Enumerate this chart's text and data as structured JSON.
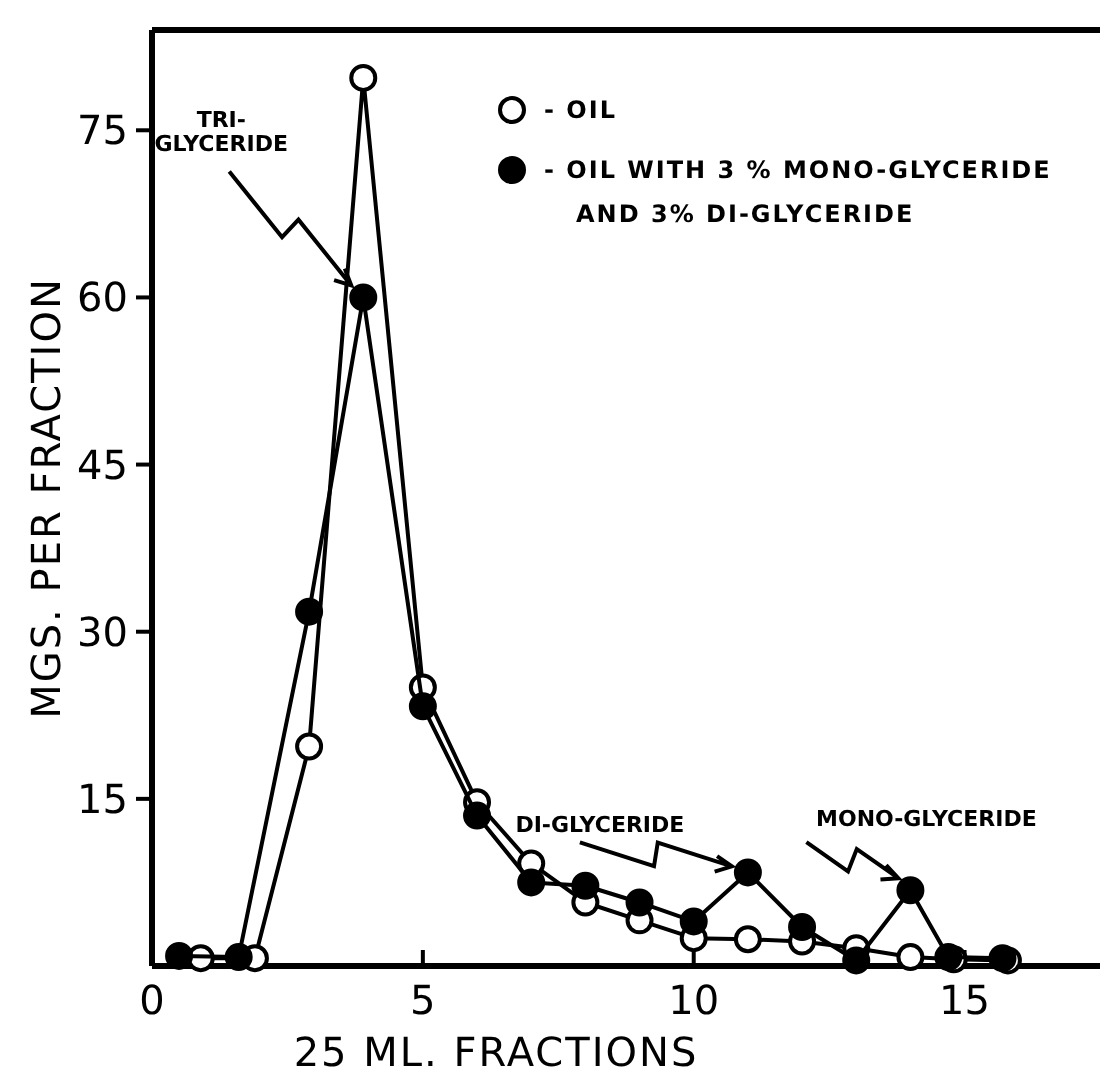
{
  "chart_data": {
    "type": "line",
    "xlabel": "25 ML. FRACTIONS",
    "ylabel": "MGS. PER FRACTION",
    "xlim": [
      0,
      17.5
    ],
    "ylim": [
      0,
      84
    ],
    "xticks": [
      0,
      5,
      10,
      15
    ],
    "yticks": [
      15,
      30,
      45,
      60,
      75
    ],
    "marker": "circle",
    "line_style": "solid",
    "grid": false,
    "legend": "top right",
    "series": [
      {
        "name": "- OIL",
        "color": "#000000",
        "x": [
          0.9,
          1.9,
          2.9,
          3.9,
          5,
          6,
          7,
          8,
          9,
          10,
          11,
          12,
          13,
          14,
          14.8,
          15.8
        ],
        "values": [
          0.7,
          0.7,
          19.7,
          79.7,
          25,
          14.7,
          9.2,
          5.7,
          4.1,
          2.5,
          2.4,
          2.2,
          1.6,
          0.8,
          0.6,
          0.5
        ]
      },
      {
        "name": "- OIL WITH 3 % MONO-GLYCERIDE AND 3% DI-GLYCERIDE",
        "color": "#000000",
        "x": [
          0.5,
          1.6,
          2.9,
          3.9,
          5,
          6,
          7,
          8,
          9,
          10,
          11,
          12,
          13,
          14,
          14.7,
          15.7
        ],
        "values": [
          0.9,
          0.8,
          31.8,
          60,
          23.3,
          13.5,
          7.5,
          7.2,
          5.7,
          4,
          8.4,
          3.5,
          0.5,
          6.8,
          0.8,
          0.7
        ]
      }
    ],
    "annotations": [
      {
        "text": "TRI- GLYCERIDE",
        "x": 3.9,
        "y": 60
      },
      {
        "text": "DI-GLYCERIDE",
        "x": 11,
        "y": 8.4
      },
      {
        "text": "MONO-GLYCERIDE",
        "x": 14,
        "y": 6.8
      }
    ]
  }
}
